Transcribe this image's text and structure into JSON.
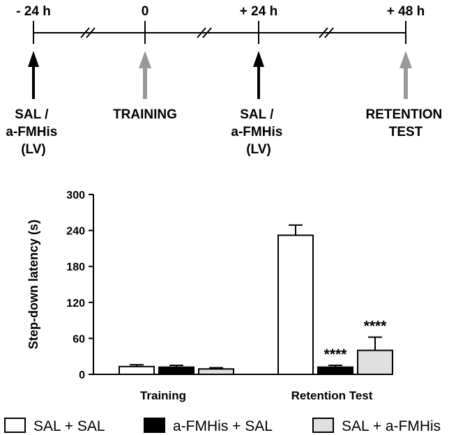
{
  "timeline": {
    "time_labels": [
      "- 24 h",
      "0",
      "+ 24 h",
      "+ 48 h"
    ],
    "events": [
      {
        "lines": [
          "SAL /",
          "a-FMHis",
          "(LV)"
        ],
        "arrow_color": "#000000"
      },
      {
        "lines": [
          "TRAINING"
        ],
        "arrow_color": "#999999"
      },
      {
        "lines": [
          "SAL /",
          "a-FMHis",
          "(LV)"
        ],
        "arrow_color": "#000000"
      },
      {
        "lines": [
          "RETENTION",
          "TEST"
        ],
        "arrow_color": "#999999"
      }
    ]
  },
  "chart_data": {
    "type": "bar",
    "categories": [
      "Training",
      "Retention Test"
    ],
    "series": [
      {
        "name": "SAL + SAL",
        "values": [
          13,
          232
        ],
        "errors": [
          3,
          17
        ],
        "color": "#ffffff"
      },
      {
        "name": "a-FMHis + SAL",
        "values": [
          12,
          12
        ],
        "errors": [
          3,
          3
        ],
        "color": "#000000"
      },
      {
        "name": "SAL + a-FMHis",
        "values": [
          9,
          40
        ],
        "errors": [
          2,
          22
        ],
        "color": "#e0e0e0"
      }
    ],
    "significance": [
      [
        "",
        ""
      ],
      [
        "",
        "****"
      ],
      [
        "",
        "****"
      ]
    ],
    "ylabel": "Step-down latency (s)",
    "ylim": [
      0,
      300
    ],
    "yticks": [
      0,
      60,
      120,
      180,
      240,
      300
    ],
    "grid": false,
    "legend_position": "bottom"
  }
}
